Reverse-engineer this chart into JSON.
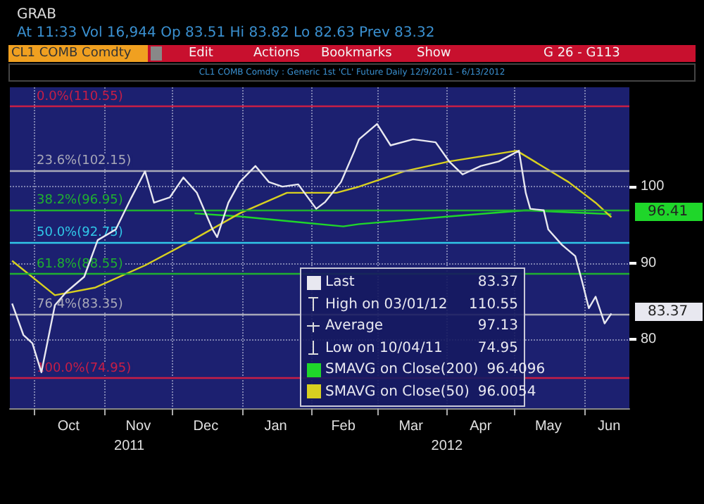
{
  "chart_data": {
    "type": "line",
    "title": "CL1 COMB Comdty : Generic 1st 'CL' Future Daily 12/9/2011 - 6/13/2012",
    "subtitle": "At 11:33 Vol 16,944 Op 83.51 Hi 83.82 Lo 82.63 Prev 83.32",
    "xlim": [
      "2011-09-20",
      "2012-06-21"
    ],
    "xticks": [
      {
        "value": "2011-10-01",
        "label": null
      },
      {
        "value": "2011-11-01",
        "label": null
      },
      {
        "value": "2011-12-01",
        "label": null
      },
      {
        "value": "2012-01-01",
        "label": null
      },
      {
        "value": "2012-02-01",
        "label": null
      },
      {
        "value": "2012-03-01",
        "label": null
      },
      {
        "value": "2012-04-01",
        "label": null
      },
      {
        "value": "2012-05-01",
        "label": null
      },
      {
        "value": "2012-06-01",
        "label": null
      },
      {
        "value": "2011-10-16",
        "label": "Oct"
      },
      {
        "value": "2011-11-16",
        "label": "Nov"
      },
      {
        "value": "2011-12-16",
        "label": "Dec"
      },
      {
        "value": "2012-01-16",
        "label": "Jan"
      },
      {
        "value": "2012-02-15",
        "label": "Feb"
      },
      {
        "value": "2012-03-16",
        "label": "Mar"
      },
      {
        "value": "2012-04-16",
        "label": "Apr"
      },
      {
        "value": "2012-05-16",
        "label": "May"
      },
      {
        "value": "2012-06-12",
        "label": "Jun"
      }
    ],
    "x2lim": [
      "2011-09-20",
      "2012-06-21"
    ],
    "x2ticks": [
      {
        "value": "2011-11-12",
        "label": "2011"
      },
      {
        "value": "2012-04-01",
        "label": "2012"
      }
    ],
    "ylim": [
      71,
      113
    ],
    "yticks": [
      80,
      90,
      100
    ],
    "grid": true,
    "legend": "bottom",
    "series": [
      {
        "color": "#e8e8f0",
        "x": [
          "2011-09-21",
          "2011-09-26",
          "2011-09-30",
          "2011-10-04",
          "2011-10-10",
          "2011-10-15",
          "2011-10-23",
          "2011-10-29",
          "2011-11-06",
          "2011-11-13",
          "2011-11-19",
          "2011-11-23",
          "2011-11-30",
          "2011-12-06",
          "2011-12-12",
          "2011-12-19",
          "2011-12-21",
          "2011-12-26",
          "2011-12-31",
          "2012-01-07",
          "2012-01-13",
          "2012-01-19",
          "2012-01-26",
          "2012-02-03",
          "2012-02-07",
          "2012-02-14",
          "2012-02-20",
          "2012-02-22",
          "2012-03-01",
          "2012-03-07",
          "2012-03-17",
          "2012-03-27",
          "2012-04-02",
          "2012-04-08",
          "2012-04-16",
          "2012-04-24",
          "2012-05-03",
          "2012-05-06",
          "2012-05-08",
          "2012-05-14",
          "2012-05-16",
          "2012-05-22",
          "2012-05-28",
          "2012-05-31",
          "2012-06-03",
          "2012-06-06",
          "2012-06-10",
          "2012-06-13"
        ],
        "values": [
          84.7,
          80.6,
          79.5,
          75.7,
          84.5,
          86.2,
          88.2,
          93,
          94.4,
          98.6,
          102,
          97.9,
          98.6,
          101.2,
          99.2,
          94.4,
          93.4,
          97.9,
          100.6,
          102.7,
          100.6,
          100,
          100.3,
          97.1,
          98,
          100.6,
          104.7,
          106.2,
          108.2,
          105.4,
          106.2,
          105.8,
          103.3,
          101.6,
          102.7,
          103.3,
          104.7,
          99.2,
          97.1,
          96.9,
          94.4,
          92.4,
          90.9,
          87.6,
          84.1,
          85.6,
          82.1,
          83.4
        ]
      },
      {
        "name": "SMAVG on Close(200)",
        "color": "#1fd62a",
        "x": [
          "2011-12-11",
          "2011-12-31",
          "2012-01-21",
          "2012-02-15",
          "2012-02-22",
          "2012-04-02",
          "2012-05-06",
          "2012-06-13"
        ],
        "values": [
          96.5,
          96.1,
          95.5,
          94.8,
          95.1,
          96.1,
          96.9,
          96.4
        ]
      },
      {
        "name": "SMAVG on Close(50)",
        "color": "#d8d020",
        "x": [
          "2011-09-21",
          "2011-10-10",
          "2011-10-28",
          "2011-11-19",
          "2011-12-10",
          "2011-12-31",
          "2012-01-21",
          "2012-02-12",
          "2012-02-22",
          "2012-03-13",
          "2012-04-02",
          "2012-05-02",
          "2012-05-25",
          "2012-06-06",
          "2012-06-13"
        ],
        "values": [
          90.3,
          85.8,
          86.8,
          89.7,
          93,
          96.5,
          99.2,
          99.2,
          100,
          102,
          103.3,
          104.7,
          100.6,
          97.9,
          96
        ]
      }
    ],
    "ref_lines": [
      {
        "axis": "y",
        "value": 110.55,
        "label": "0.0%(110.55)",
        "color": "#c81e46"
      },
      {
        "axis": "y",
        "value": 102.15,
        "label": "23.6%(102.15)",
        "color": "#a8a8b8"
      },
      {
        "axis": "y",
        "value": 96.95,
        "label": "38.2%(96.95)",
        "color": "#1fb030"
      },
      {
        "axis": "y",
        "value": 92.75,
        "label": "50.0%(92.75)",
        "color": "#30c8e8"
      },
      {
        "axis": "y",
        "value": 88.55,
        "label": "61.8%(88.55)",
        "color": "#1fb030"
      },
      {
        "axis": "y",
        "value": 83.35,
        "label": "76.4%(83.35)",
        "color": "#a8a8b8"
      },
      {
        "axis": "y",
        "value": 74.95,
        "label": "100.0%(74.95)",
        "color": "#c81e46"
      }
    ],
    "annotations": [
      "Last 83.37",
      "High on 03/01/12 110.55",
      "Average 97.13",
      "Low on 10/04/11 74.95",
      "96.4096",
      "96.0054",
      "GRAB",
      "CL1 COMB Comdty",
      "Edit",
      "Actions",
      "Bookmarks",
      "Show",
      "G 26 - G113",
      {
        "text": "96.41",
        "x": "2012-06-13",
        "y": 96.41
      },
      {
        "text": "83.37",
        "x": "2012-06-13",
        "y": 83.37
      }
    ]
  }
}
